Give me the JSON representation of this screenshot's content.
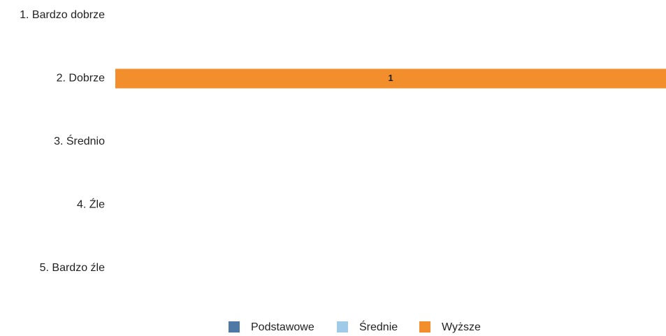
{
  "chart_data": {
    "type": "stacked-barh",
    "categories": [
      "1. Bardzo dobrze",
      "2. Dobrze",
      "3. Średnio",
      "4. Źle",
      "5. Bardzo źle"
    ],
    "series": [
      {
        "name": "Podstawowe",
        "color": "#4e79a7",
        "values": [
          0,
          0,
          0,
          0,
          0
        ]
      },
      {
        "name": "Średnie",
        "color": "#a0cbe8",
        "values": [
          0,
          0,
          0,
          0,
          0
        ]
      },
      {
        "name": "Wyższe",
        "color": "#f28e2b",
        "values": [
          0,
          1,
          0,
          0,
          0
        ]
      }
    ],
    "xlim": [
      0,
      1
    ]
  }
}
